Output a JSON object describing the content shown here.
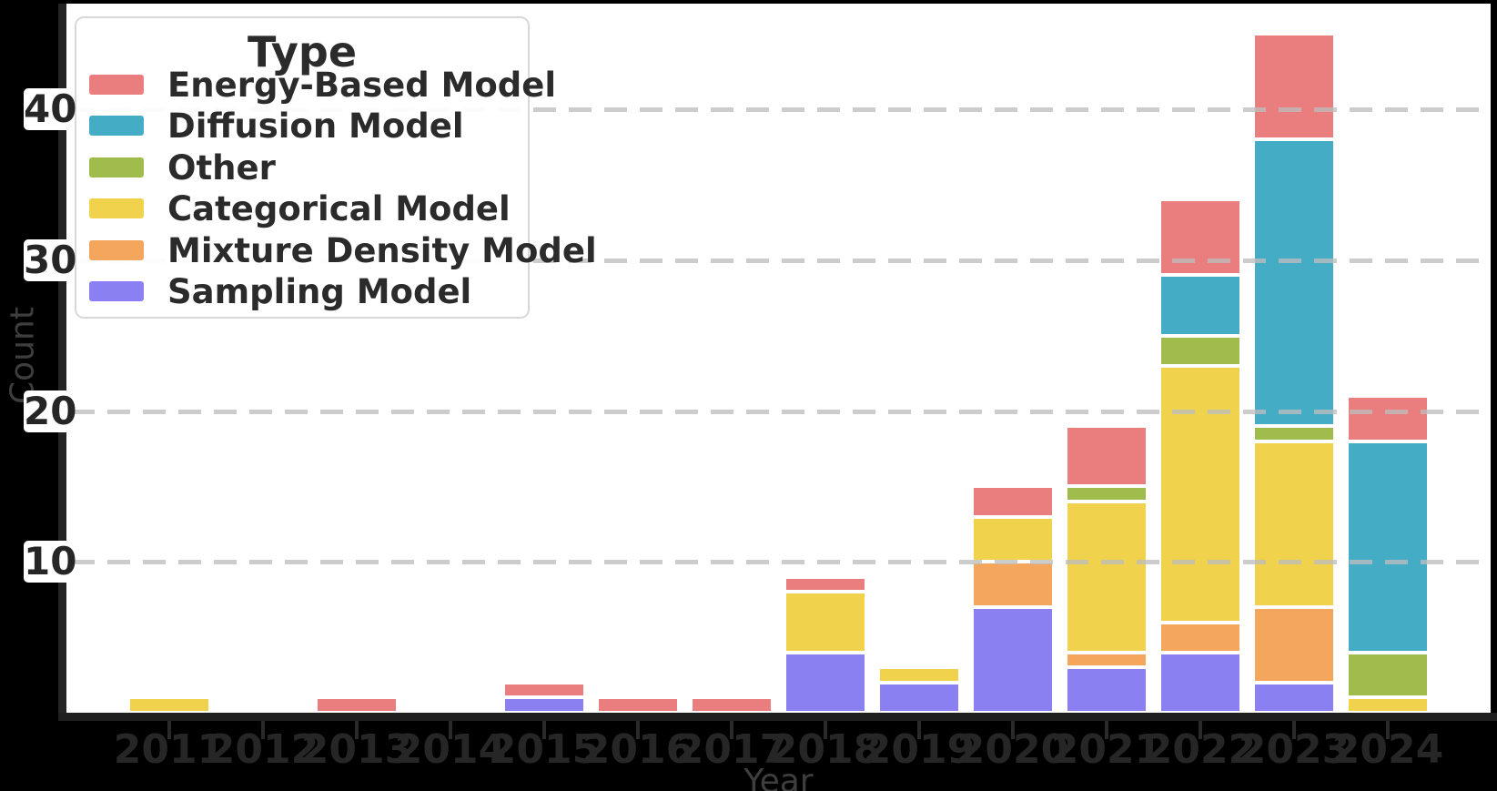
{
  "figure": {
    "background": "#000000",
    "plot_background": "#ffffff",
    "grid_color": "#bdbdbd",
    "spine_color": "#242424",
    "tick_label_color": "#262626",
    "axis_label_color": "#3e3e3e"
  },
  "y_axis": {
    "label": "Count",
    "ticks": [
      "10",
      "20",
      "30",
      "40"
    ]
  },
  "x_axis": {
    "label": "Year"
  },
  "legend": {
    "title": "Type",
    "items": [
      {
        "label": "Energy-Based Model",
        "color": "#EA7D7D"
      },
      {
        "label": "Diffusion Model",
        "color": "#44ADC5"
      },
      {
        "label": "Other",
        "color": "#9FBC4C"
      },
      {
        "label": "Categorical Model",
        "color": "#F0D24D"
      },
      {
        "label": "Mixture Density Model",
        "color": "#F4A75C"
      },
      {
        "label": "Sampling Model",
        "color": "#8B80F2"
      }
    ]
  },
  "chart_data": {
    "type": "bar",
    "stacked": true,
    "title": "",
    "xlabel": "Year",
    "ylabel": "Count",
    "ylim": [
      0,
      47
    ],
    "yticks": [
      10,
      20,
      30,
      40
    ],
    "grid": "horizontal dashed, drawn over bars",
    "legend_position": "upper left",
    "categories": [
      "2011",
      "2012",
      "2013",
      "2014",
      "2015",
      "2016",
      "2017",
      "2018",
      "2019",
      "2020",
      "2021",
      "2022",
      "2023",
      "2024"
    ],
    "series": [
      {
        "name": "Energy-Based Model",
        "color": "#EA7D7D",
        "values": [
          0,
          0,
          1,
          0,
          1,
          1,
          1,
          1,
          0,
          2,
          4,
          5,
          7,
          3
        ]
      },
      {
        "name": "Diffusion Model",
        "color": "#44ADC5",
        "values": [
          0,
          0,
          0,
          0,
          0,
          0,
          0,
          0,
          0,
          0,
          0,
          4,
          19,
          14
        ]
      },
      {
        "name": "Other",
        "color": "#9FBC4C",
        "values": [
          0,
          0,
          0,
          0,
          0,
          0,
          0,
          0,
          0,
          0,
          1,
          2,
          1,
          3
        ]
      },
      {
        "name": "Categorical Model",
        "color": "#F0D24D",
        "values": [
          1,
          0,
          0,
          0,
          0,
          0,
          0,
          4,
          1,
          3,
          10,
          17,
          11,
          1
        ]
      },
      {
        "name": "Mixture Density Model",
        "color": "#F4A75C",
        "values": [
          0,
          0,
          0,
          0,
          0,
          0,
          0,
          0,
          0,
          3,
          1,
          2,
          5,
          0
        ]
      },
      {
        "name": "Sampling Model",
        "color": "#8B80F2",
        "values": [
          0,
          0,
          0,
          0,
          1,
          0,
          0,
          4,
          2,
          7,
          3,
          4,
          2,
          0
        ]
      }
    ],
    "stack_order_bottom_to_top": [
      "Sampling Model",
      "Mixture Density Model",
      "Categorical Model",
      "Other",
      "Diffusion Model",
      "Energy-Based Model"
    ],
    "totals": [
      1,
      0,
      1,
      0,
      2,
      1,
      1,
      9,
      3,
      15,
      19,
      34,
      45,
      21
    ]
  }
}
